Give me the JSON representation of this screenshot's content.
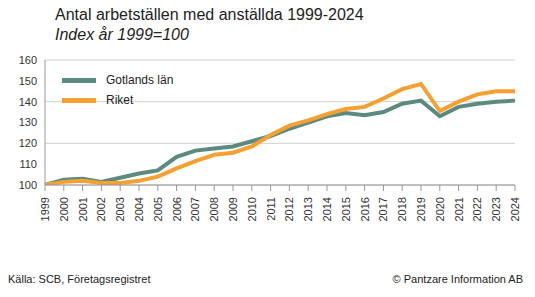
{
  "chart_data": {
    "type": "line",
    "title": "Antal arbetställen med anställda 1999-2024",
    "subtitle": "Index år 1999=100",
    "source": "Källa: SCB, Företagsregistret",
    "credit": "© Pantzare Information AB",
    "categories": [
      "1999",
      "2000",
      "2001",
      "2002",
      "2003",
      "2004",
      "2005",
      "2006",
      "2007",
      "2008",
      "2009",
      "2010",
      "2011",
      "2012",
      "2013",
      "2014",
      "2015",
      "2016",
      "2017",
      "2018",
      "2019",
      "2020",
      "2021",
      "2022",
      "2023",
      "2024"
    ],
    "series": [
      {
        "name": "Gotlands län",
        "color": "#5a8a80",
        "values": [
          100,
          102.5,
          103,
          101.5,
          103.5,
          105.5,
          107,
          113.5,
          116.5,
          117.5,
          118.5,
          121,
          123.5,
          127,
          130,
          133,
          134.5,
          133.5,
          135,
          139,
          140.5,
          133,
          137.5,
          139,
          140,
          140.5
        ]
      },
      {
        "name": "Riket",
        "color": "#f5a030",
        "values": [
          100,
          101.5,
          102,
          101,
          101,
          102,
          104,
          108,
          111.5,
          114.5,
          115.5,
          118.5,
          124,
          128.5,
          131,
          134,
          136.5,
          137.5,
          141.5,
          146,
          148.5,
          135.5,
          140,
          143.5,
          145,
          145
        ]
      }
    ],
    "ylim": [
      100,
      160
    ],
    "yticks": [
      100,
      110,
      120,
      130,
      140,
      150,
      160
    ],
    "grid": true,
    "legend": "top-left"
  }
}
